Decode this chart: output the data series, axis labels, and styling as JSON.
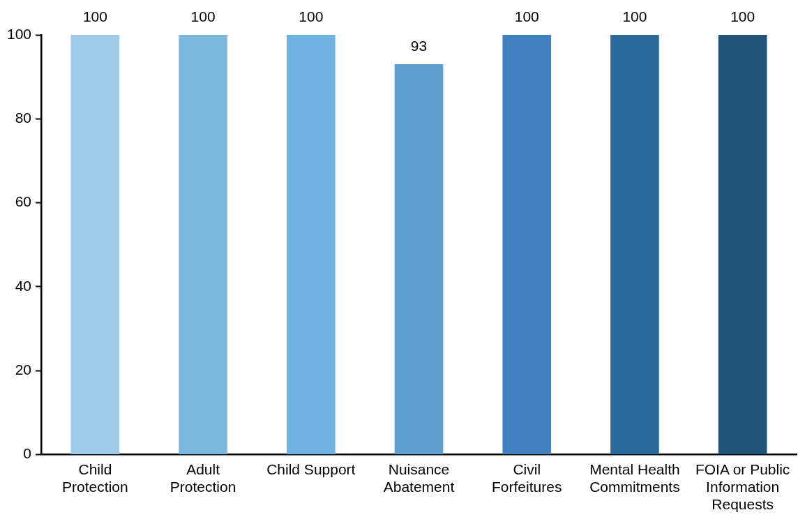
{
  "chart_data": {
    "type": "bar",
    "categories": [
      "Child Protection",
      "Adult Protection",
      "Child Support",
      "Nuisance Abatement",
      "Civil Forfeitures",
      "Mental Health Commitments",
      "FOIA or Public Information Requests"
    ],
    "values": [
      100,
      100,
      100,
      93,
      100,
      100,
      100
    ],
    "colors": [
      "#9fcae8",
      "#7db8df",
      "#6fb1e0",
      "#5f9ecf",
      "#4181c0",
      "#2d6a9c",
      "#1f5478"
    ],
    "ylim": [
      0,
      100
    ],
    "yticks": [
      0,
      20,
      40,
      60,
      80,
      100
    ],
    "grid": false,
    "legend": false,
    "data_labels": true
  }
}
